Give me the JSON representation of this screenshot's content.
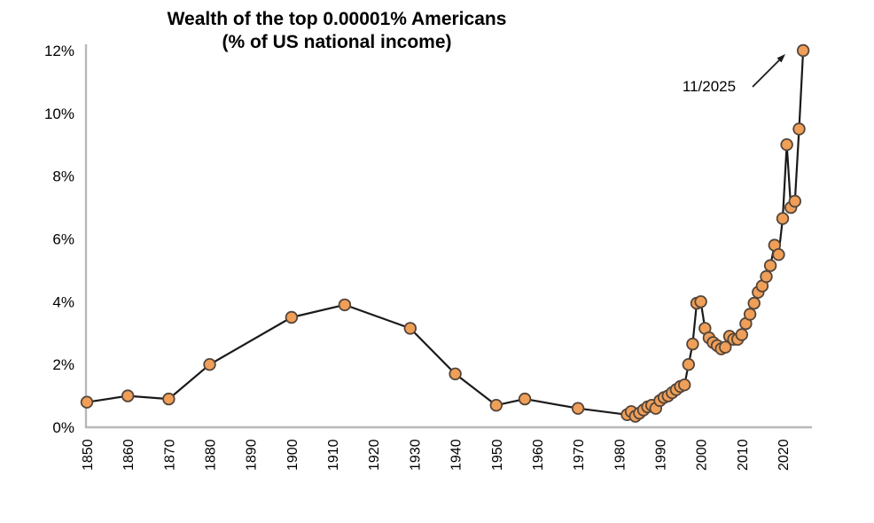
{
  "page": {
    "background": "#FFFFFF"
  },
  "chart_data": {
    "type": "line",
    "title": "Wealth of the top 0.00001% Americans",
    "subtitle": "(% of US national income)",
    "xlabel": "",
    "ylabel": "",
    "grid": "off",
    "legend": "none",
    "ylim": [
      0,
      12
    ],
    "xlim": [
      1850,
      2027
    ],
    "y_axis": {
      "ticks": [
        {
          "label": "0%",
          "value": 0
        },
        {
          "label": "2%",
          "value": 2
        },
        {
          "label": "4%",
          "value": 4
        },
        {
          "label": "6%",
          "value": 6
        },
        {
          "label": "8%",
          "value": 8
        },
        {
          "label": "10%",
          "value": 10
        },
        {
          "label": "12%",
          "value": 12
        }
      ]
    },
    "x_axis": {
      "ticks": [
        {
          "label": "1850",
          "value": 1850
        },
        {
          "label": "1860",
          "value": 1860
        },
        {
          "label": "1870",
          "value": 1870
        },
        {
          "label": "1880",
          "value": 1880
        },
        {
          "label": "1890",
          "value": 1890
        },
        {
          "label": "1900",
          "value": 1900
        },
        {
          "label": "1910",
          "value": 1910
        },
        {
          "label": "1920",
          "value": 1920
        },
        {
          "label": "1930",
          "value": 1930
        },
        {
          "label": "1940",
          "value": 1940
        },
        {
          "label": "1950",
          "value": 1950
        },
        {
          "label": "1960",
          "value": 1960
        },
        {
          "label": "1970",
          "value": 1970
        },
        {
          "label": "1980",
          "value": 1980
        },
        {
          "label": "1990",
          "value": 1990
        },
        {
          "label": "2000",
          "value": 2000
        },
        {
          "label": "2010",
          "value": 2010
        },
        {
          "label": "2020",
          "value": 2020
        }
      ]
    },
    "annotation": {
      "text": "11/2025",
      "target_point": [
        2025,
        12.0
      ]
    },
    "series": [
      {
        "name": "Top 0.00001% wealth share (% of US national income)",
        "marker": "circle",
        "points": [
          [
            1850,
            0.8
          ],
          [
            1860,
            1.0
          ],
          [
            1870,
            0.9
          ],
          [
            1880,
            2.0
          ],
          [
            1900,
            3.5
          ],
          [
            1913,
            3.9
          ],
          [
            1929,
            3.15
          ],
          [
            1940,
            1.7
          ],
          [
            1950,
            0.7
          ],
          [
            1957,
            0.9
          ],
          [
            1970,
            0.6
          ],
          [
            1982,
            0.4
          ],
          [
            1983,
            0.5
          ],
          [
            1984,
            0.35
          ],
          [
            1985,
            0.45
          ],
          [
            1986,
            0.55
          ],
          [
            1987,
            0.65
          ],
          [
            1988,
            0.7
          ],
          [
            1989,
            0.6
          ],
          [
            1990,
            0.85
          ],
          [
            1991,
            0.95
          ],
          [
            1992,
            1.0
          ],
          [
            1993,
            1.1
          ],
          [
            1994,
            1.2
          ],
          [
            1995,
            1.3
          ],
          [
            1996,
            1.35
          ],
          [
            1997,
            2.0
          ],
          [
            1998,
            2.65
          ],
          [
            1999,
            3.95
          ],
          [
            2000,
            4.0
          ],
          [
            2001,
            3.15
          ],
          [
            2002,
            2.85
          ],
          [
            2003,
            2.7
          ],
          [
            2004,
            2.6
          ],
          [
            2005,
            2.5
          ],
          [
            2006,
            2.55
          ],
          [
            2007,
            2.9
          ],
          [
            2008,
            2.8
          ],
          [
            2009,
            2.8
          ],
          [
            2010,
            2.95
          ],
          [
            2011,
            3.3
          ],
          [
            2012,
            3.6
          ],
          [
            2013,
            3.95
          ],
          [
            2014,
            4.3
          ],
          [
            2015,
            4.5
          ],
          [
            2016,
            4.8
          ],
          [
            2017,
            5.15
          ],
          [
            2018,
            5.8
          ],
          [
            2019,
            5.5
          ],
          [
            2020,
            6.65
          ],
          [
            2021,
            9.0
          ],
          [
            2022,
            7.0
          ],
          [
            2023,
            7.2
          ],
          [
            2024,
            9.5
          ],
          [
            2025,
            12.0
          ]
        ]
      }
    ],
    "colors": {
      "line": "#1A1A1A",
      "marker_fill": "#EF9F58",
      "marker_stroke": "#54453A",
      "axis": "#B8B8B8",
      "text": "#000000"
    }
  }
}
